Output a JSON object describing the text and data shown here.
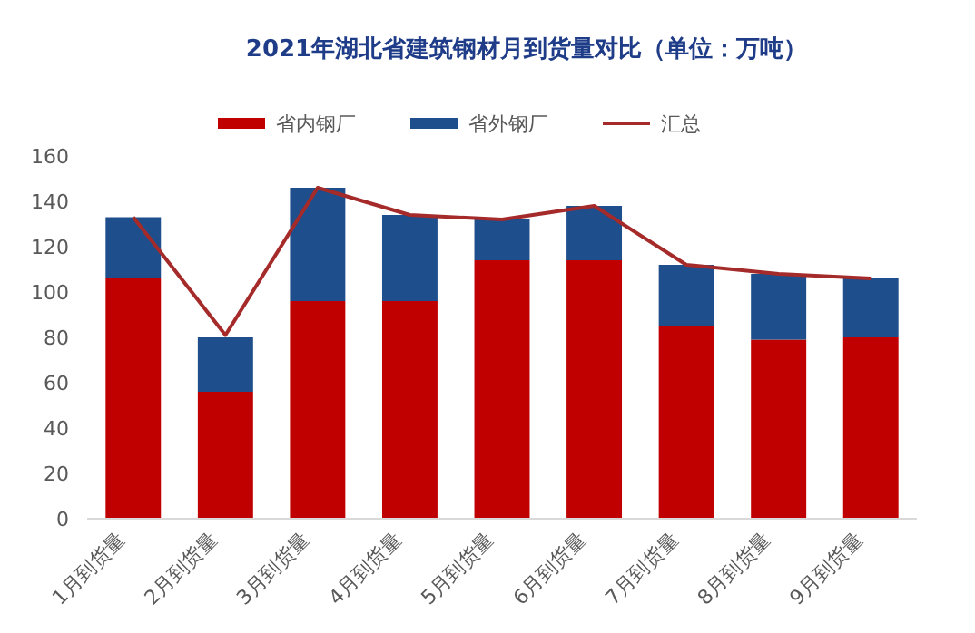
{
  "chart_data": {
    "type": "bar",
    "title": "2021年湖北省建筑钢材月到货量对比（单位：万吨）",
    "categories": [
      "1月到货量",
      "2月到货量",
      "3月到货量",
      "4月到货量",
      "5月到货量",
      "6月到货量",
      "7月到货量",
      "8月到货量",
      "9月到货量"
    ],
    "stacked": true,
    "series": [
      {
        "name": "省内钢厂",
        "color": "#c00000",
        "values": [
          106,
          56,
          96,
          96,
          114,
          114,
          85,
          79,
          80
        ]
      },
      {
        "name": "省外钢厂",
        "color": "#1f4e8c",
        "values": [
          27,
          24,
          50,
          38,
          18,
          24,
          27,
          29,
          26
        ]
      },
      {
        "name": "汇总",
        "type": "line",
        "color": "#a52a2a",
        "values": [
          133,
          81,
          146,
          134,
          132,
          138,
          112,
          108,
          106
        ]
      }
    ],
    "ylim": [
      0,
      160
    ],
    "yticks": [
      0,
      20,
      40,
      60,
      80,
      100,
      120,
      140,
      160
    ],
    "grid": false,
    "legend": "top"
  }
}
